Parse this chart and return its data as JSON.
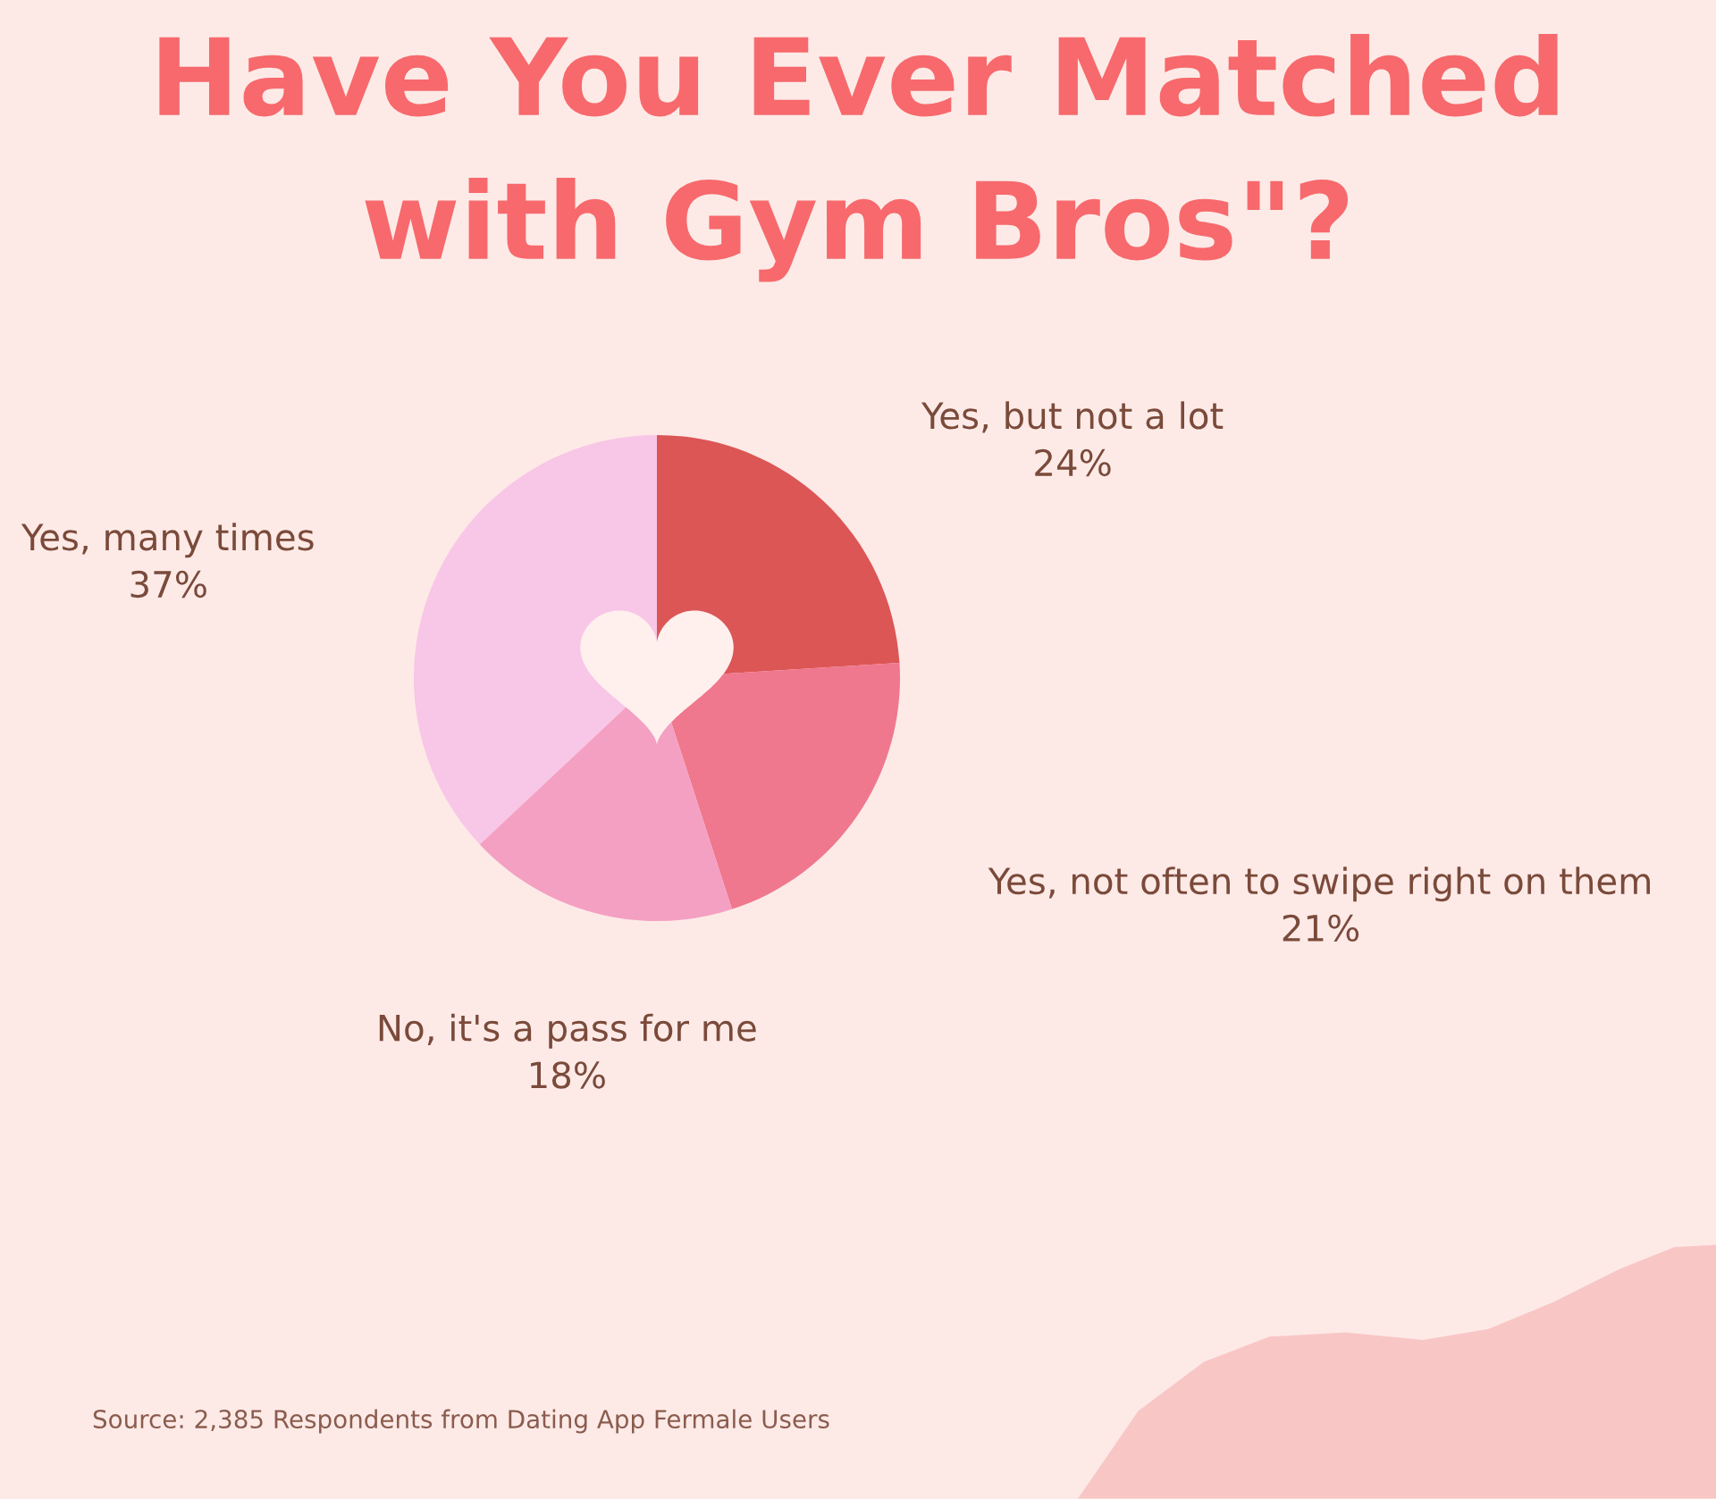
{
  "chart_data": {
    "type": "pie",
    "title": "Have You Ever Matched\nwith Gym Bros\"?",
    "categories": [
      "Yes, but not a lot",
      "Yes, not often to swipe right on them",
      "No, it's a pass for me",
      "Yes, many times"
    ],
    "values": [
      24,
      21,
      18,
      37
    ],
    "colors": [
      "#dc5656",
      "#ef778e",
      "#f4a0c2",
      "#f8c6e6"
    ],
    "value_labels": [
      "24%",
      "21%",
      "18%",
      "37%"
    ],
    "annotations": [
      "Source: 2,385 Respondents from Dating App Fermale Users"
    ]
  }
}
